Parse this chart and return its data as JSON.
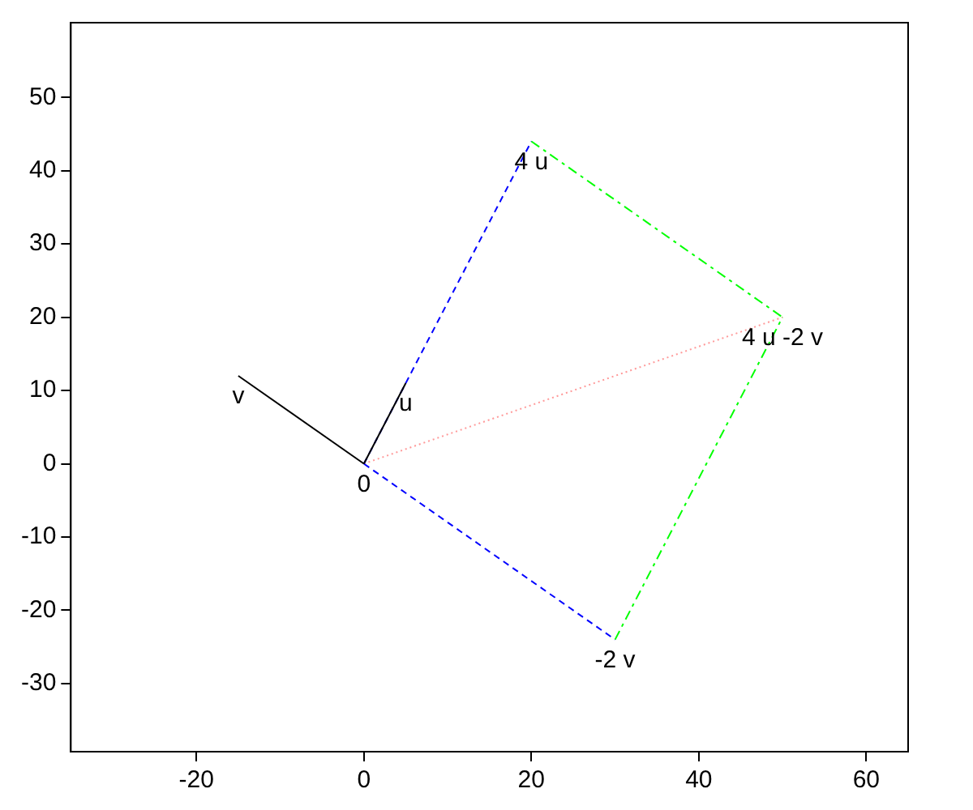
{
  "chart_data": {
    "type": "line",
    "xlim": [
      -35,
      65
    ],
    "ylim": [
      -39.3,
      60.2
    ],
    "xticks": [
      -20,
      0,
      20,
      40,
      60
    ],
    "yticks": [
      -30,
      -20,
      -10,
      0,
      10,
      20,
      30,
      40,
      50
    ],
    "grid": false,
    "legend": false,
    "marker": "none",
    "series": [
      {
        "x": [
          0,
          5
        ],
        "values": [
          0,
          11
        ],
        "color": "#000000",
        "line_style": "solid"
      },
      {
        "x": [
          0,
          -15
        ],
        "values": [
          0,
          12
        ],
        "color": "#000000",
        "line_style": "solid"
      },
      {
        "x": [
          0,
          20
        ],
        "values": [
          0,
          44
        ],
        "color": "#0000ff",
        "line_style": "dashed"
      },
      {
        "x": [
          0,
          30
        ],
        "values": [
          0,
          -24
        ],
        "color": "#0000ff",
        "line_style": "dashed"
      },
      {
        "x": [
          20,
          50
        ],
        "values": [
          44,
          20
        ],
        "color": "#00ff00",
        "line_style": "dashdot"
      },
      {
        "x": [
          30,
          50
        ],
        "values": [
          -24,
          20
        ],
        "color": "#00ff00",
        "line_style": "dashdot"
      },
      {
        "x": [
          0,
          50
        ],
        "values": [
          0,
          20
        ],
        "color": "#ff9999",
        "line_style": "dotted"
      }
    ],
    "annotations": [
      {
        "text": "0",
        "x": 0,
        "y": 0
      },
      {
        "text": "u",
        "x": 5,
        "y": 11
      },
      {
        "text": "v",
        "x": -15,
        "y": 12
      },
      {
        "text": "4 u",
        "x": 20,
        "y": 44
      },
      {
        "text": "-2 v",
        "x": 30,
        "y": -24
      },
      {
        "text": "4 u -2 v",
        "x": 50,
        "y": 20
      }
    ]
  }
}
